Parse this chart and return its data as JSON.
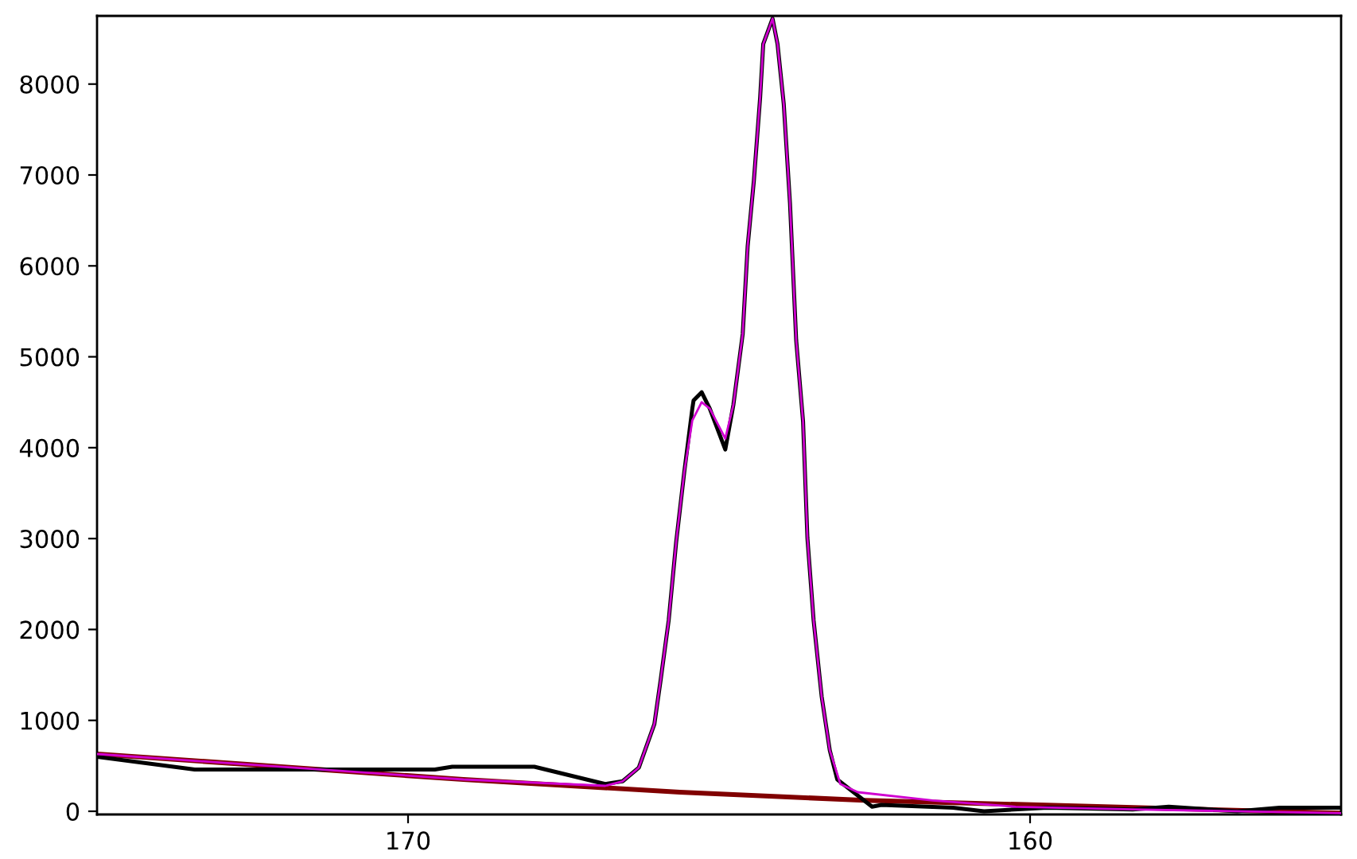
{
  "chart_data": {
    "type": "line",
    "xlim": [
      175,
      155
    ],
    "ylim": [
      -35,
      8750
    ],
    "xticks": [
      170,
      160
    ],
    "yticks": [
      0,
      1000,
      2000,
      3000,
      4000,
      5000,
      6000,
      7000,
      8000
    ],
    "grid": false,
    "legend": false,
    "marker": "none",
    "line_style": "solid",
    "series": [
      {
        "color": "#800000",
        "x": [
          175.0,
          169.11,
          165.63,
          162.66,
          155.0
        ],
        "values": [
          630,
          350,
          210,
          120,
          -20
        ]
      },
      {
        "color": "#d000d0",
        "x": [
          175.0,
          169.11,
          166.83,
          166.55,
          166.29,
          166.04,
          165.94,
          165.81,
          165.69,
          165.56,
          165.43,
          165.28,
          165.15,
          164.9,
          164.77,
          164.62,
          164.54,
          164.44,
          164.34,
          164.29,
          164.14,
          164.06,
          163.96,
          163.86,
          163.76,
          163.65,
          163.58,
          163.48,
          163.35,
          163.22,
          163.05,
          162.77,
          161.57,
          160.23,
          158.35,
          155.0
        ],
        "values": [
          630,
          350,
          280,
          330,
          480,
          960,
          1440,
          2100,
          2960,
          3730,
          4300,
          4500,
          4430,
          4100,
          4470,
          5250,
          6220,
          6940,
          7850,
          8440,
          8720,
          8440,
          7780,
          6690,
          5180,
          4290,
          3010,
          2100,
          1260,
          670,
          300,
          210,
          120,
          50,
          20,
          -20
        ]
      },
      {
        "color": "#000000",
        "x": [
          175.0,
          173.43,
          169.57,
          169.29,
          167.97,
          166.83,
          166.55,
          166.29,
          166.04,
          165.94,
          165.81,
          165.69,
          165.56,
          165.43,
          165.41,
          165.28,
          165.15,
          164.9,
          164.77,
          164.62,
          164.54,
          164.44,
          164.34,
          164.29,
          164.14,
          164.06,
          163.96,
          163.86,
          163.76,
          163.65,
          163.58,
          163.48,
          163.35,
          163.22,
          163.1,
          162.54,
          162.39,
          161.24,
          160.74,
          159.72,
          158.35,
          157.77,
          156.67,
          155.99,
          155.0
        ],
        "values": [
          600,
          460,
          460,
          490,
          490,
          300,
          330,
          480,
          960,
          1440,
          2100,
          2960,
          3730,
          4430,
          4520,
          4610,
          4430,
          3980,
          4470,
          5250,
          6220,
          6940,
          7850,
          8440,
          8720,
          8440,
          7780,
          6690,
          5180,
          4290,
          3010,
          2100,
          1260,
          670,
          350,
          50,
          70,
          40,
          0,
          40,
          20,
          50,
          0,
          40,
          40
        ]
      }
    ]
  }
}
